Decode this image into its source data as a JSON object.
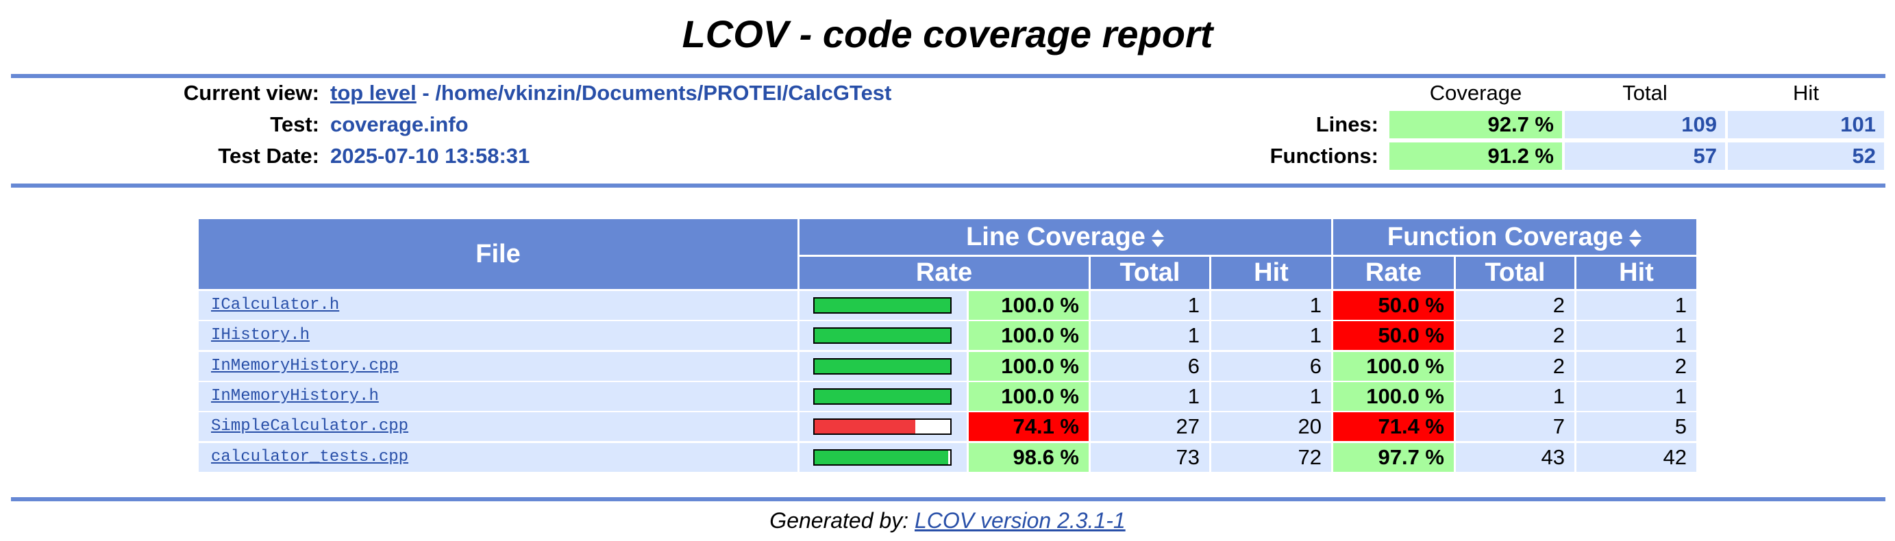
{
  "title": "LCOV - code coverage report",
  "header": {
    "current_view_label": "Current view:",
    "current_view_link": "top level",
    "current_view_path": " - /home/vkinzin/Documents/PROTEI/CalcGTest",
    "test_label": "Test:",
    "test_value": "coverage.info",
    "date_label": "Test Date:",
    "date_value": "2025-07-10 13:58:31"
  },
  "summary": {
    "col_coverage": "Coverage",
    "col_total": "Total",
    "col_hit": "Hit",
    "lines_label": "Lines:",
    "lines_coverage": "92.7 %",
    "lines_total": "109",
    "lines_hit": "101",
    "functions_label": "Functions:",
    "functions_coverage": "91.2 %",
    "functions_total": "57",
    "functions_hit": "52"
  },
  "table": {
    "file_header": "File",
    "line_coverage_header": "Line Coverage",
    "function_coverage_header": "Function Coverage",
    "rate": "Rate",
    "total": "Total",
    "hit": "Hit",
    "rows": [
      {
        "file": "ICalculator.h",
        "line_pct": 100.0,
        "line_rate": "100.0 %",
        "line_total": "1",
        "line_hit": "1",
        "fn_rate": "50.0 %",
        "fn_low": true,
        "fn_total": "2",
        "fn_hit": "1"
      },
      {
        "file": "IHistory.h",
        "line_pct": 100.0,
        "line_rate": "100.0 %",
        "line_total": "1",
        "line_hit": "1",
        "fn_rate": "50.0 %",
        "fn_low": true,
        "fn_total": "2",
        "fn_hit": "1"
      },
      {
        "file": "InMemoryHistory.cpp",
        "line_pct": 100.0,
        "line_rate": "100.0 %",
        "line_total": "6",
        "line_hit": "6",
        "fn_rate": "100.0 %",
        "fn_low": false,
        "fn_total": "2",
        "fn_hit": "2"
      },
      {
        "file": "InMemoryHistory.h",
        "line_pct": 100.0,
        "line_rate": "100.0 %",
        "line_total": "1",
        "line_hit": "1",
        "fn_rate": "100.0 %",
        "fn_low": false,
        "fn_total": "1",
        "fn_hit": "1"
      },
      {
        "file": "SimpleCalculator.cpp",
        "line_pct": 74.1,
        "line_rate": "74.1 %",
        "line_total": "27",
        "line_hit": "20",
        "fn_rate": "71.4 %",
        "fn_low": true,
        "fn_total": "7",
        "fn_hit": "5"
      },
      {
        "file": "calculator_tests.cpp",
        "line_pct": 98.6,
        "line_rate": "98.6 %",
        "line_total": "73",
        "line_hit": "72",
        "fn_rate": "97.7 %",
        "fn_low": false,
        "fn_total": "43",
        "fn_hit": "42"
      }
    ]
  },
  "colors": {
    "header_blue": "#6688d4",
    "row_blue": "#dae7fe",
    "high_green": "#a7fc9d",
    "low_red": "#ff0000",
    "bar_green": "#22c94a",
    "bar_red": "#f0393d",
    "link_blue": "#284fa8"
  },
  "icons": {
    "sort": "sort-icon"
  },
  "footer": {
    "prefix": "Generated by: ",
    "link": "LCOV version 2.3.1-1"
  }
}
